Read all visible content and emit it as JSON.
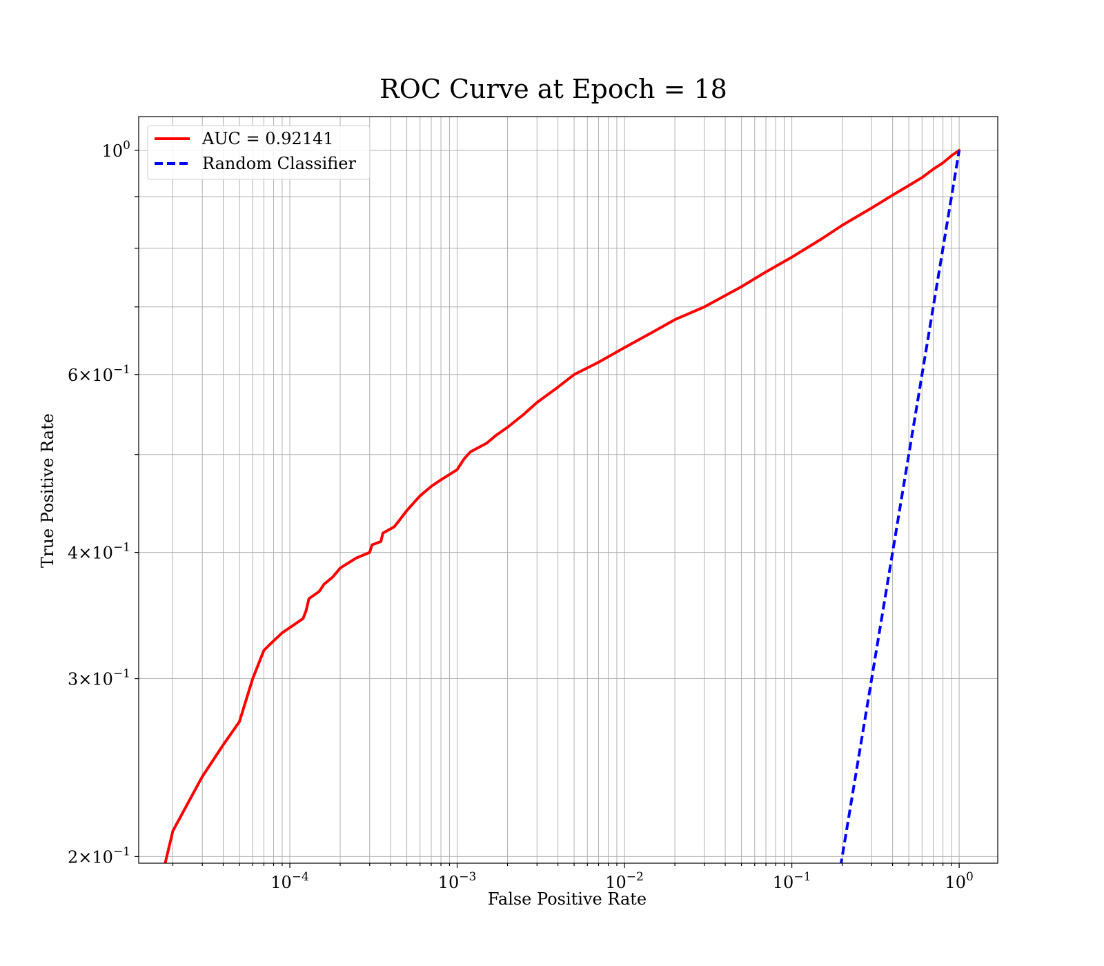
{
  "chart_data": {
    "type": "line",
    "title": "ROC Curve at Epoch = 18",
    "xlabel": "False Positive Rate",
    "ylabel": "True Positive Rate",
    "xscale": "log",
    "yscale": "log",
    "xlim": [
      1.25e-05,
      1.7
    ],
    "ylim": [
      0.197,
      1.08
    ],
    "grid": true,
    "legend_position": "upper-left",
    "x_ticks": [
      {
        "value": 0.0001,
        "base": "10",
        "exp": "−4"
      },
      {
        "value": 0.001,
        "base": "10",
        "exp": "−3"
      },
      {
        "value": 0.01,
        "base": "10",
        "exp": "−2"
      },
      {
        "value": 0.1,
        "base": "10",
        "exp": "−1"
      },
      {
        "value": 1,
        "base": "10",
        "exp": "0"
      }
    ],
    "y_ticks": [
      {
        "value": 0.2,
        "mantissa": "2×",
        "base": "10",
        "exp": "−1"
      },
      {
        "value": 0.3,
        "mantissa": "3×",
        "base": "10",
        "exp": "−1"
      },
      {
        "value": 0.4,
        "mantissa": "4×",
        "base": "10",
        "exp": "−1"
      },
      {
        "value": 0.6,
        "mantissa": "6×",
        "base": "10",
        "exp": "−1"
      },
      {
        "value": 1,
        "mantissa": "",
        "base": "10",
        "exp": "0"
      }
    ],
    "y_minor_grid": [
      0.5,
      0.7,
      0.8,
      0.9
    ],
    "series": [
      {
        "name": "AUC = 0.92141",
        "color": "#ff0000",
        "dash": "solid",
        "x": [
          1.8e-05,
          2e-05,
          3e-05,
          4e-05,
          5e-05,
          6e-05,
          7e-05,
          8e-05,
          9e-05,
          0.0001,
          0.00012,
          0.000125,
          0.00013,
          0.00015,
          0.00016,
          0.00018,
          0.0002,
          0.00025,
          0.0003,
          0.00031,
          0.00035,
          0.00036,
          0.00042,
          0.00045,
          0.0005,
          0.0006,
          0.0007,
          0.0008,
          0.001,
          0.0011,
          0.0012,
          0.0015,
          0.0017,
          0.002,
          0.0025,
          0.003,
          0.004,
          0.005,
          0.007,
          0.01,
          0.015,
          0.02,
          0.03,
          0.05,
          0.07,
          0.1,
          0.15,
          0.2,
          0.3,
          0.4,
          0.5,
          0.6,
          0.7,
          0.8,
          0.9,
          1.0
        ],
        "y": [
          0.197,
          0.212,
          0.24,
          0.258,
          0.272,
          0.3,
          0.32,
          0.327,
          0.333,
          0.337,
          0.344,
          0.35,
          0.36,
          0.366,
          0.372,
          0.378,
          0.386,
          0.395,
          0.4,
          0.407,
          0.41,
          0.418,
          0.424,
          0.43,
          0.44,
          0.455,
          0.465,
          0.472,
          0.483,
          0.495,
          0.503,
          0.513,
          0.522,
          0.532,
          0.548,
          0.563,
          0.583,
          0.6,
          0.617,
          0.638,
          0.662,
          0.68,
          0.7,
          0.733,
          0.758,
          0.784,
          0.817,
          0.843,
          0.877,
          0.903,
          0.923,
          0.94,
          0.958,
          0.972,
          0.988,
          1.0
        ]
      },
      {
        "name": "Random Classifier",
        "color": "#0000ff",
        "dash": "dashed",
        "x": [
          0.19,
          1.0
        ],
        "y": [
          0.19,
          1.0
        ]
      }
    ]
  }
}
